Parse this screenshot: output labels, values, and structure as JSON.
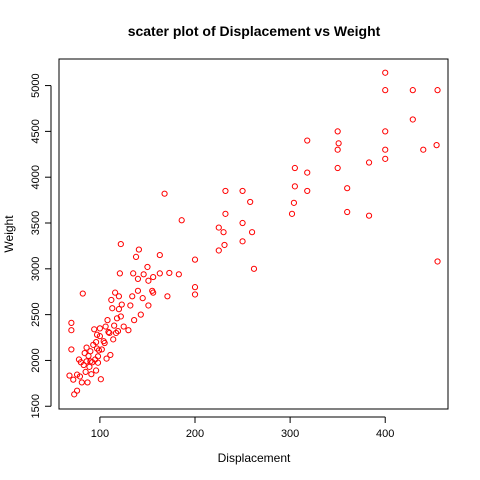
{
  "chart_data": {
    "type": "scatter",
    "title": "scater plot of Displacement vs Weight",
    "xlabel": "Displacement",
    "ylabel": "Weight",
    "xlim": [
      57,
      466
    ],
    "ylim": [
      1470,
      5290
    ],
    "x_ticks": [
      100,
      200,
      300,
      400
    ],
    "y_ticks": [
      1500,
      2000,
      2500,
      3000,
      3500,
      4000,
      4500,
      5000
    ],
    "grid": false,
    "legend": "none",
    "point_color": "#ff0000",
    "marker": "open-circle",
    "points": [
      [
        68,
        1835
      ],
      [
        70,
        2120
      ],
      [
        70,
        2330
      ],
      [
        70,
        2410
      ],
      [
        72,
        1790
      ],
      [
        73,
        1630
      ],
      [
        76,
        1845
      ],
      [
        76,
        1670
      ],
      [
        78,
        2010
      ],
      [
        79,
        1825
      ],
      [
        80,
        1980
      ],
      [
        81,
        1760
      ],
      [
        82,
        2730
      ],
      [
        83,
        1950
      ],
      [
        84,
        2080
      ],
      [
        85,
        1875
      ],
      [
        86,
        1990
      ],
      [
        86,
        2140
      ],
      [
        87,
        1760
      ],
      [
        88,
        2050
      ],
      [
        89,
        1930
      ],
      [
        90,
        2100
      ],
      [
        90,
        1990
      ],
      [
        91,
        1850
      ],
      [
        92,
        1980
      ],
      [
        93,
        2170
      ],
      [
        94,
        2340
      ],
      [
        95,
        2010
      ],
      [
        96,
        2200
      ],
      [
        96,
        1890
      ],
      [
        97,
        2130
      ],
      [
        97,
        2280
      ],
      [
        98,
        1975
      ],
      [
        98,
        2045
      ],
      [
        99,
        2110
      ],
      [
        100,
        2265
      ],
      [
        100,
        2350
      ],
      [
        101,
        1795
      ],
      [
        102,
        2120
      ],
      [
        104,
        2210
      ],
      [
        105,
        2190
      ],
      [
        106,
        2370
      ],
      [
        107,
        2020
      ],
      [
        108,
        2440
      ],
      [
        109,
        2310
      ],
      [
        110,
        2300
      ],
      [
        111,
        2060
      ],
      [
        112,
        2660
      ],
      [
        113,
        2570
      ],
      [
        114,
        2230
      ],
      [
        115,
        2380
      ],
      [
        116,
        2740
      ],
      [
        117,
        2300
      ],
      [
        118,
        2460
      ],
      [
        119,
        2320
      ],
      [
        120,
        2560
      ],
      [
        120,
        2700
      ],
      [
        121,
        2950
      ],
      [
        122,
        2480
      ],
      [
        122,
        3270
      ],
      [
        123,
        2610
      ],
      [
        125,
        2370
      ],
      [
        130,
        2330
      ],
      [
        132,
        2600
      ],
      [
        134,
        2700
      ],
      [
        135,
        2950
      ],
      [
        136,
        2440
      ],
      [
        138,
        3130
      ],
      [
        140,
        2890
      ],
      [
        140,
        2760
      ],
      [
        141,
        3210
      ],
      [
        143,
        2500
      ],
      [
        145,
        2680
      ],
      [
        146,
        2940
      ],
      [
        150,
        3020
      ],
      [
        151,
        2870
      ],
      [
        151,
        2600
      ],
      [
        155,
        2760
      ],
      [
        156,
        2740
      ],
      [
        156,
        2910
      ],
      [
        163,
        2950
      ],
      [
        163,
        3150
      ],
      [
        168,
        3820
      ],
      [
        171,
        2700
      ],
      [
        173,
        2955
      ],
      [
        183,
        2940
      ],
      [
        186,
        3530
      ],
      [
        200,
        2720
      ],
      [
        200,
        3100
      ],
      [
        200,
        2800
      ],
      [
        225,
        3200
      ],
      [
        225,
        3450
      ],
      [
        230,
        3400
      ],
      [
        231,
        3260
      ],
      [
        232,
        3600
      ],
      [
        232,
        3850
      ],
      [
        250,
        3300
      ],
      [
        250,
        3500
      ],
      [
        250,
        3850
      ],
      [
        258,
        3730
      ],
      [
        260,
        3400
      ],
      [
        262,
        3000
      ],
      [
        302,
        3600
      ],
      [
        304,
        3720
      ],
      [
        305,
        3900
      ],
      [
        305,
        4100
      ],
      [
        318,
        3850
      ],
      [
        318,
        4400
      ],
      [
        318,
        4050
      ],
      [
        350,
        4100
      ],
      [
        350,
        4300
      ],
      [
        350,
        4500
      ],
      [
        351,
        4370
      ],
      [
        360,
        3620
      ],
      [
        360,
        3880
      ],
      [
        383,
        3580
      ],
      [
        383,
        4160
      ],
      [
        400,
        4200
      ],
      [
        400,
        4300
      ],
      [
        400,
        4500
      ],
      [
        400,
        4950
      ],
      [
        400,
        5140
      ],
      [
        429,
        4630
      ],
      [
        429,
        4950
      ],
      [
        440,
        4300
      ],
      [
        454,
        4350
      ],
      [
        455,
        4950
      ],
      [
        455,
        3080
      ]
    ]
  }
}
